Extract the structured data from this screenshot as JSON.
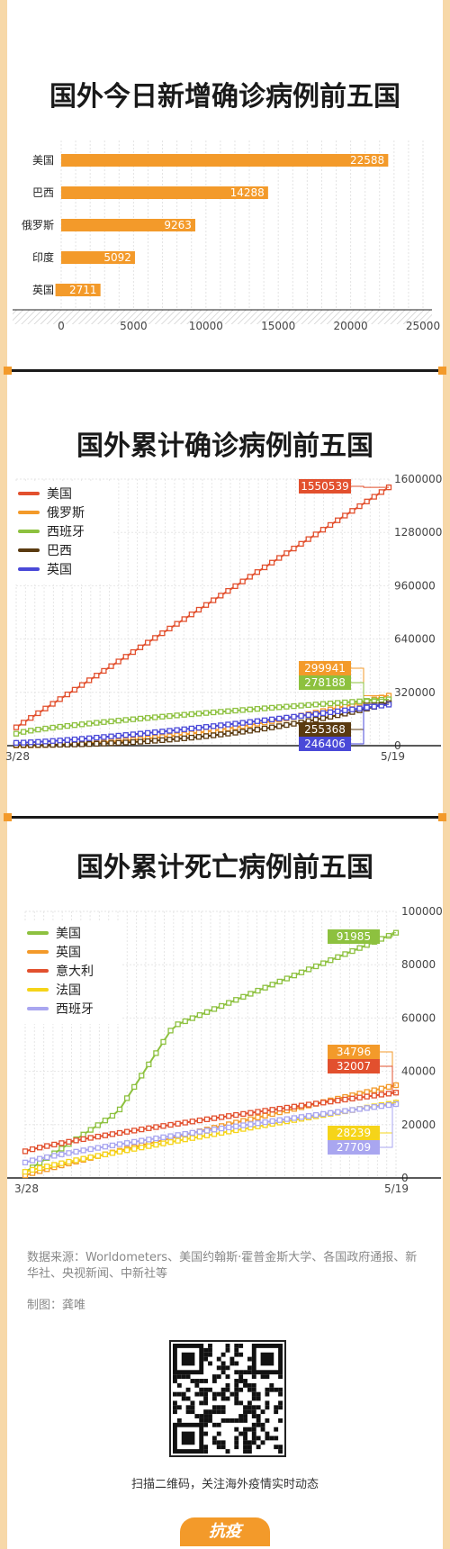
{
  "colors": {
    "accent": "#f39a2a",
    "frame": "#f7d8a8"
  },
  "chart_data": [
    {
      "type": "bar",
      "orientation": "horizontal",
      "title": "国外今日新增确诊病例前五国",
      "categories": [
        "美国",
        "巴西",
        "俄罗斯",
        "印度",
        "英国"
      ],
      "values": [
        22588,
        14288,
        9263,
        5092,
        2711
      ],
      "xlim": [
        0,
        25000
      ],
      "xticks": [
        0,
        5000,
        10000,
        15000,
        20000,
        25000
      ],
      "grid": true,
      "color": "#f39a2a"
    },
    {
      "type": "line",
      "title": "国外累计确诊病例前五国",
      "x_start": "3/28",
      "x_end": "5/19",
      "ylim": [
        0,
        1600000
      ],
      "yticks": [
        0,
        320000,
        640000,
        960000,
        1280000,
        1600000
      ],
      "legend_position": "top-left",
      "series": [
        {
          "name": "美国",
          "color": "#e2502e",
          "start": 110000,
          "end": 1550539,
          "end_label": "1550539"
        },
        {
          "name": "俄罗斯",
          "color": "#f39a2a",
          "start": 1500,
          "end": 299941,
          "end_label": "299941"
        },
        {
          "name": "西班牙",
          "color": "#8dc13f",
          "start": 72000,
          "end": 278188,
          "end_label": "278188"
        },
        {
          "name": "巴西",
          "color": "#5a3a10",
          "start": 3900,
          "end": 255368,
          "end_label": "255368"
        },
        {
          "name": "英国",
          "color": "#4a49d8",
          "start": 17000,
          "end": 246406,
          "end_label": "246406"
        }
      ]
    },
    {
      "type": "line",
      "title": "国外累计死亡病例前五国",
      "x_start": "3/28",
      "x_end": "5/19",
      "ylim": [
        0,
        100000
      ],
      "yticks": [
        0,
        20000,
        40000,
        60000,
        80000,
        100000
      ],
      "legend_position": "top-left",
      "series": [
        {
          "name": "美国",
          "color": "#8dc13f",
          "start": 2200,
          "end": 91985,
          "end_label": "91985"
        },
        {
          "name": "英国",
          "color": "#f39a2a",
          "start": 1000,
          "end": 34796,
          "end_label": "34796"
        },
        {
          "name": "意大利",
          "color": "#e2502e",
          "start": 10000,
          "end": 32007,
          "end_label": "32007"
        },
        {
          "name": "法国",
          "color": "#f5d419",
          "start": 2300,
          "end": 28239,
          "end_label": "28239"
        },
        {
          "name": "西班牙",
          "color": "#a9a6f0",
          "start": 5800,
          "end": 27709,
          "end_label": "27709"
        }
      ]
    }
  ],
  "footer": {
    "source": "数据来源：Worldometers、美国约翰斯·霍普金斯大学、各国政府通报、新华社、央视新闻、中新社等",
    "credit": "制图：龚唯",
    "scan_text": "扫描二维码，关注海外疫情实时动态",
    "badge": "抗疫"
  }
}
